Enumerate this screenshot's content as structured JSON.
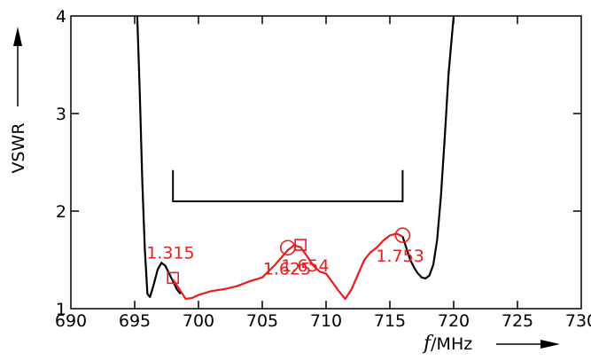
{
  "chart_data": {
    "type": "line",
    "title": "",
    "xlabel_var": "f",
    "xlabel_unit": "/MHz",
    "ylabel": "VSWR",
    "xlim": [
      690,
      730
    ],
    "ylim": [
      1,
      4
    ],
    "x_ticks": [
      "690",
      "695",
      "700",
      "705",
      "710",
      "715",
      "720",
      "725",
      "730"
    ],
    "y_ticks": [
      "1",
      "2",
      "3",
      "4"
    ],
    "grid": false,
    "colors": {
      "series_black": "#000000",
      "series_red": "#ee1c1c"
    },
    "series": [
      {
        "color": "#000000",
        "x": [
          695.2,
          695.4,
          695.6,
          695.8,
          696.0,
          696.2,
          696.5,
          696.8,
          697.1,
          697.4,
          697.7,
          698.0,
          698.3,
          698.6
        ],
        "y": [
          4.0,
          3.2,
          2.3,
          1.6,
          1.15,
          1.12,
          1.25,
          1.4,
          1.47,
          1.44,
          1.36,
          1.28,
          1.2,
          1.15
        ]
      },
      {
        "color": "#ee1c1c",
        "x": [
          698.0,
          698.5,
          699.0,
          699.5,
          700.0,
          701.0,
          702.0,
          703.0,
          704.0,
          705.0,
          706.0,
          707.0,
          707.5,
          708.0,
          708.5,
          709.0,
          709.5,
          710.0,
          711.0,
          711.5,
          712.0,
          712.5,
          713.0,
          713.5,
          714.0,
          714.5,
          715.0,
          715.5,
          716.0
        ],
        "y": [
          1.3,
          1.2,
          1.1,
          1.11,
          1.14,
          1.18,
          1.2,
          1.23,
          1.28,
          1.32,
          1.45,
          1.6,
          1.65,
          1.63,
          1.54,
          1.44,
          1.38,
          1.36,
          1.18,
          1.1,
          1.2,
          1.35,
          1.5,
          1.58,
          1.63,
          1.7,
          1.75,
          1.77,
          1.74
        ]
      },
      {
        "color": "#000000",
        "x": [
          716.0,
          716.3,
          716.6,
          716.9,
          717.2,
          717.5,
          717.8,
          718.1,
          718.4,
          718.7,
          719.0,
          719.3,
          719.6,
          720.0
        ],
        "y": [
          1.74,
          1.62,
          1.5,
          1.42,
          1.36,
          1.32,
          1.31,
          1.34,
          1.45,
          1.7,
          2.15,
          2.75,
          3.4,
          4.0
        ]
      }
    ],
    "bracket": {
      "x": [
        698,
        716
      ],
      "y_top": 2.42,
      "y": 2.1
    },
    "markers": [
      {
        "shape": "square",
        "x": 698.0,
        "y": 1.315,
        "label": "1.315"
      },
      {
        "shape": "circle",
        "x": 707.0,
        "y": 1.625,
        "label": "1.625"
      },
      {
        "shape": "square",
        "x": 708.0,
        "y": 1.654,
        "label": "1.654"
      },
      {
        "shape": "circle",
        "x": 716.0,
        "y": 1.753,
        "label": "1.753"
      }
    ]
  }
}
